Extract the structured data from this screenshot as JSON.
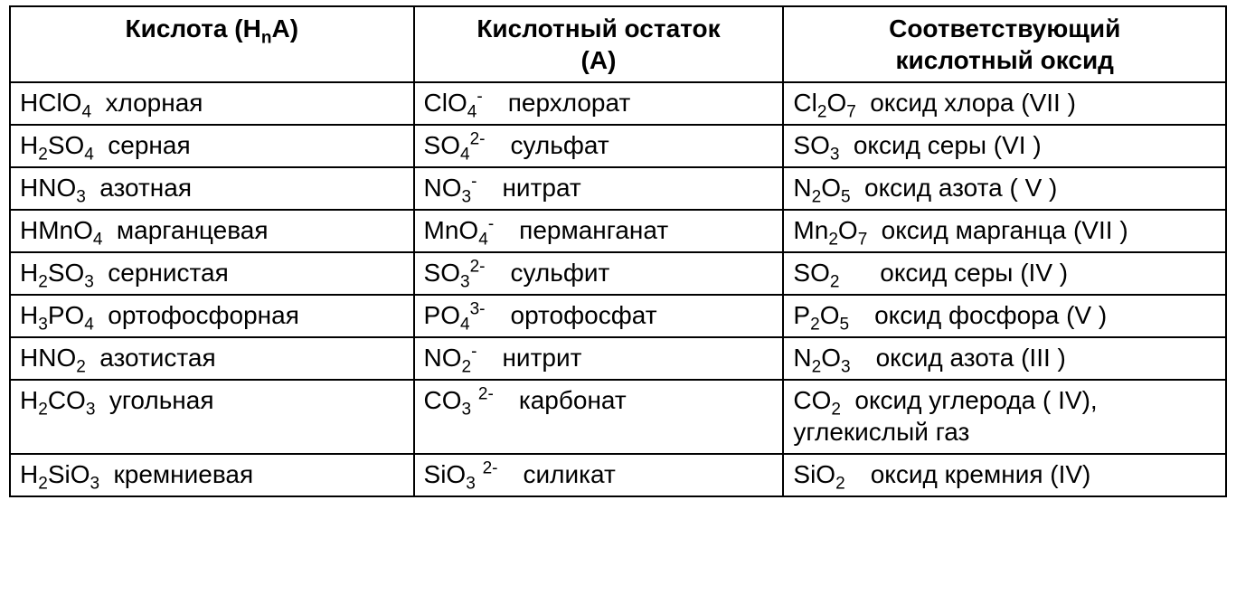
{
  "table": {
    "font_family": "Arial",
    "font_size_pt": 21,
    "border_color": "#000000",
    "background_color": "#ffffff",
    "text_color": "#000000",
    "column_widths_pct": [
      33.2,
      30.4,
      36.4
    ],
    "headers": {
      "acid": {
        "prefix": "Кислота (H",
        "sub": "n",
        "suffix": "A)"
      },
      "residue": {
        "line1": "Кислотный остаток",
        "line2": "(A)"
      },
      "oxide": {
        "line1": "Соответствующий",
        "line2": "кислотный оксид"
      }
    },
    "rows": [
      {
        "acid": {
          "formula_html": "HClO<sub>4</sub>",
          "name": "хлорная",
          "gap": "sm"
        },
        "residue": {
          "formula_html": "ClO<sub>4</sub><sup>-</sup>",
          "name": "перхлорат",
          "gap": "md"
        },
        "oxide": {
          "formula_html": "Cl<sub>2</sub>O<sub>7</sub>",
          "name": "оксид хлора (VII )",
          "gap": "sm"
        }
      },
      {
        "acid": {
          "formula_html": "H<sub>2</sub>SO<sub>4</sub>",
          "name": "серная",
          "gap": "sm"
        },
        "residue": {
          "formula_html": "SO<sub>4</sub><sup>2-</sup>",
          "name": "сульфат",
          "gap": "md"
        },
        "oxide": {
          "formula_html": "SO<sub>3</sub>",
          "name": "оксид серы (VI )",
          "gap": "sm"
        }
      },
      {
        "acid": {
          "formula_html": "HNO<sub>3</sub>",
          "name": "азотная",
          "gap": "sm"
        },
        "residue": {
          "formula_html": "NO<sub>3</sub><sup>-</sup>",
          "name": "нитрат",
          "gap": "md"
        },
        "oxide": {
          "formula_html": "N<sub>2</sub>O<sub>5</sub>",
          "name": "оксид азота ( V )",
          "gap": "sm"
        }
      },
      {
        "acid": {
          "formula_html": "HMnO<sub>4</sub>",
          "name": "марганцевая",
          "gap": "sm"
        },
        "residue": {
          "formula_html": "MnO<sub>4</sub><sup>-</sup>",
          "name": "перманганат",
          "gap": "md"
        },
        "oxide": {
          "formula_html": "Mn<sub>2</sub>O<sub>7</sub>",
          "name": "оксид марганца (VII )",
          "gap": "sm"
        }
      },
      {
        "acid": {
          "formula_html": "H<sub>2</sub>SO<sub>3</sub>",
          "name": "сернистая",
          "gap": "sm"
        },
        "residue": {
          "formula_html": "SO<sub>3</sub><sup>2-</sup>",
          "name": "сульфит",
          "gap": "md"
        },
        "oxide": {
          "formula_html": "SO<sub>2</sub>",
          "name": "оксид серы (IV )",
          "gap": "lg"
        }
      },
      {
        "acid": {
          "formula_html": "H<sub>3</sub>PO<sub>4</sub>",
          "name": "ортофосфорная",
          "gap": "sm"
        },
        "residue": {
          "formula_html": "PO<sub>4</sub><sup>3-</sup>",
          "name": "ортофосфат",
          "gap": "md"
        },
        "oxide": {
          "formula_html": "P<sub>2</sub>O<sub>5</sub>",
          "name": "оксид фосфора (V )",
          "gap": "md"
        }
      },
      {
        "acid": {
          "formula_html": "HNO<sub>2</sub>",
          "name": "азотистая",
          "gap": "sm"
        },
        "residue": {
          "formula_html": "NO<sub>2</sub><sup>-</sup>",
          "name": "нитрит",
          "gap": "md"
        },
        "oxide": {
          "formula_html": "N<sub>2</sub>O<sub>3</sub>",
          "name": "оксид азота (III )",
          "gap": "md"
        }
      },
      {
        "acid": {
          "formula_html": "H<sub>2</sub>CO<sub>3</sub>",
          "name": "угольная",
          "gap": "sm"
        },
        "residue": {
          "formula_html": "CO<sub>3</sub> <sup>2-</sup>",
          "name": "карбонат",
          "gap": "md"
        },
        "oxide": {
          "formula_html": "CO<sub>2</sub>",
          "name": "оксид углерода ( IV), углекислый газ",
          "gap": "sm"
        }
      },
      {
        "acid": {
          "formula_html": "H<sub>2</sub>SiO<sub>3</sub>",
          "name": "кремниевая",
          "gap": "sm"
        },
        "residue": {
          "formula_html": "SiO<sub>3</sub> <sup>2-</sup>",
          "name": "силикат",
          "gap": "md"
        },
        "oxide": {
          "formula_html": "SiO<sub>2</sub>",
          "name": "оксид кремния (IV)",
          "gap": "md"
        }
      }
    ]
  }
}
